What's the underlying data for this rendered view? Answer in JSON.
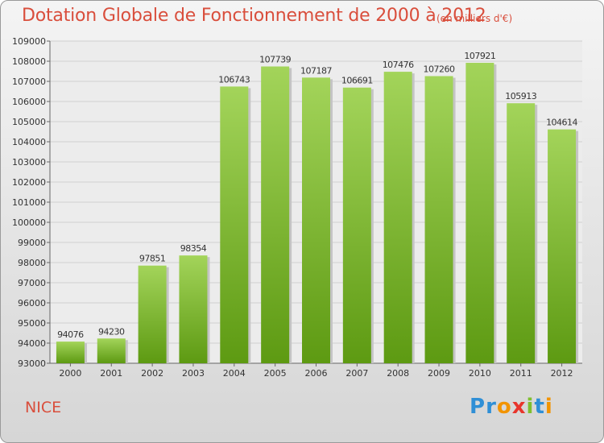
{
  "title": "Dotation Globale de Fonctionnement de 2000 à 2012",
  "unit": "(en milliers d'€)",
  "city": "NICE",
  "logo": {
    "text": "Proxiti",
    "letters": [
      {
        "char": "P",
        "color": "#2f8fd6"
      },
      {
        "char": "r",
        "color": "#2f8fd6"
      },
      {
        "char": "o",
        "color": "#f29400"
      },
      {
        "char": "x",
        "color": "#e8352c"
      },
      {
        "char": "i",
        "color": "#7fbf2e"
      },
      {
        "char": "t",
        "color": "#2f8fd6"
      },
      {
        "char": "i",
        "color": "#f29400"
      }
    ]
  },
  "colors": {
    "title": "#d94e3c",
    "bar_top": "#a3d45a",
    "bar_bottom": "#5d9a12"
  },
  "chart_data": {
    "type": "bar",
    "title": "Dotation Globale de Fonctionnement de 2000 à 2012",
    "subtitle": "(en milliers d'€)",
    "xlabel": "",
    "ylabel": "",
    "categories": [
      "2000",
      "2001",
      "2002",
      "2003",
      "2004",
      "2005",
      "2006",
      "2007",
      "2008",
      "2009",
      "2010",
      "2011",
      "2012"
    ],
    "values": [
      94076,
      94230,
      97851,
      98354,
      106743,
      107739,
      107187,
      106691,
      107476,
      107260,
      107921,
      105913,
      104614
    ],
    "ylim": [
      93000,
      109000
    ],
    "yticks": [
      93000,
      94000,
      95000,
      96000,
      97000,
      98000,
      99000,
      100000,
      101000,
      102000,
      103000,
      104000,
      105000,
      106000,
      107000,
      108000,
      109000
    ],
    "grid": "horizontal",
    "legend": "none"
  }
}
